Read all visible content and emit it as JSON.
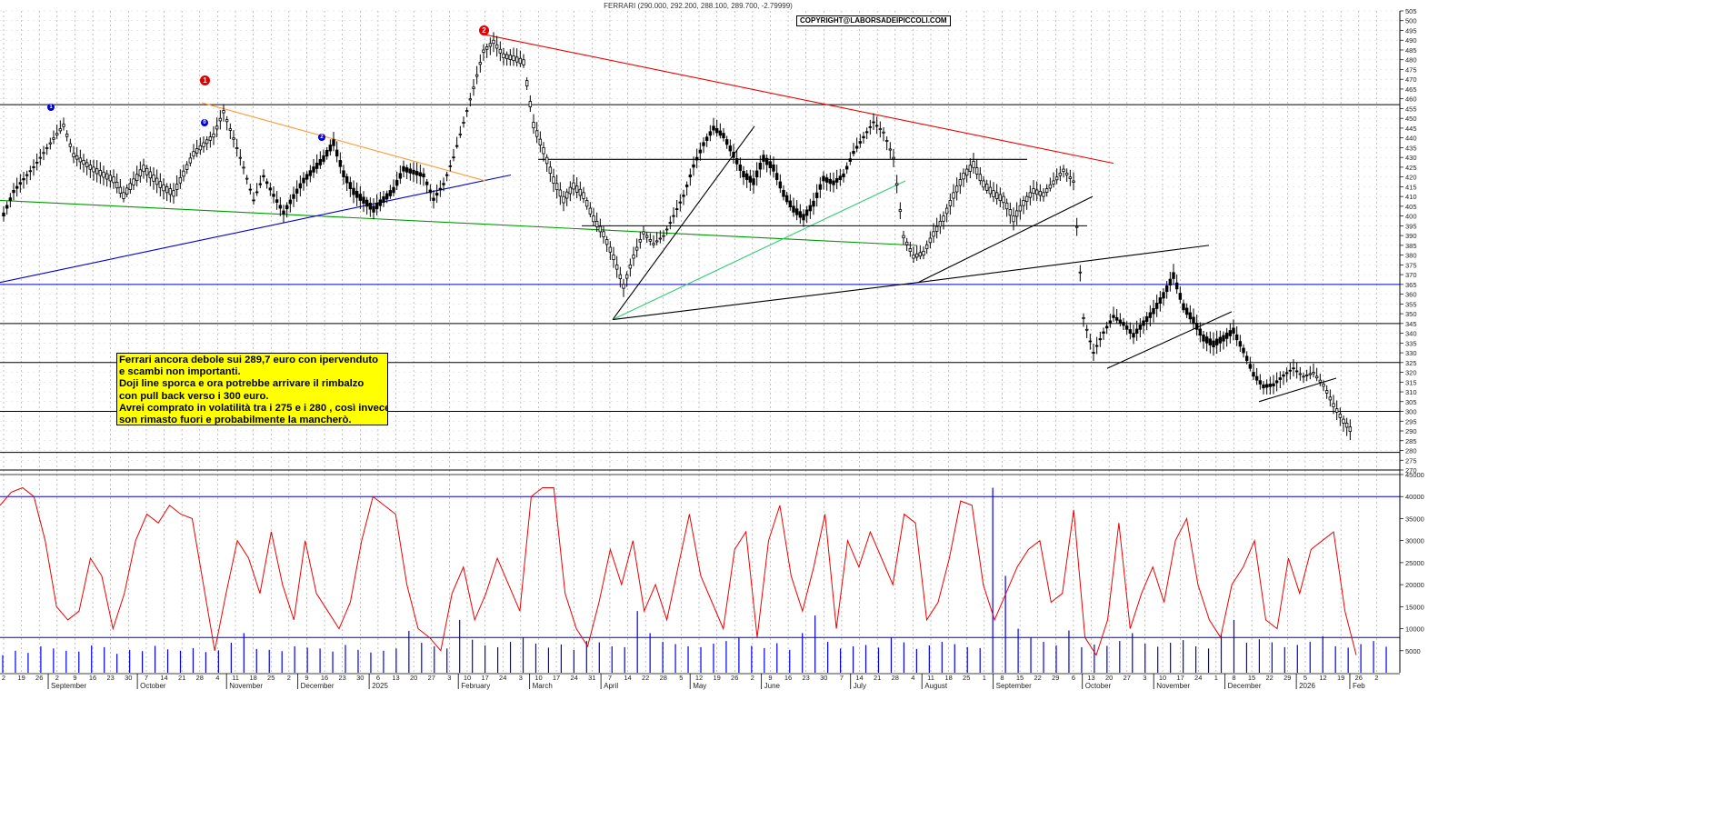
{
  "header": {
    "title": "FERRARI (290.000, 292.200, 288.100, 289.700, -2.79999)",
    "copyright": "COPYRIGHT@LABORSADEIPICCOLI.COM"
  },
  "annotation": {
    "lines": [
      "Ferrari ancora debole sui 289,7 euro con ipervenduto",
      "e scambi non importanti.",
      "Doji line sporca e ora potrebbe arrivare il rimbalzo",
      "con pull back verso i 300 euro.",
      "Avrei comprato in volatilità tra i 275 e i 280 , così invece",
      "son rimasto fuori e probabilmente la mancherò."
    ]
  },
  "wave_labels": {
    "red": [
      "1",
      "2"
    ],
    "blue": [
      "1",
      "0",
      "2"
    ]
  },
  "colors": {
    "candle": "#000000",
    "grid": "#9a9a9a",
    "horizontal": "#000000",
    "support_blue": "#0000cc",
    "resistance_red": "#ee0000",
    "orange": "#ff9933",
    "green": "#009900",
    "light_green": "#33cc77",
    "volume": "#0000ee",
    "oscillator": "#ee0000"
  },
  "chart_data": [
    {
      "type": "candlestick",
      "title": "FERRARI (290.000, 292.200, 288.100, 289.700, -2.79999)",
      "last": {
        "open": 290.0,
        "high": 292.2,
        "low": 288.1,
        "close": 289.7,
        "change": -2.79999
      },
      "ylim": [
        270,
        505
      ],
      "y_ticks": [
        505,
        500,
        495,
        490,
        485,
        480,
        475,
        470,
        465,
        460,
        455,
        450,
        445,
        440,
        435,
        430,
        425,
        420,
        415,
        410,
        405,
        400,
        395,
        390,
        385,
        380,
        375,
        370,
        365,
        360,
        355,
        350,
        345,
        340,
        335,
        330,
        325,
        320,
        315,
        310,
        305,
        300,
        295,
        290,
        285,
        280,
        275,
        270
      ],
      "x_day_labels": [
        "2",
        "19",
        "26",
        "2",
        "9",
        "16",
        "23",
        "30",
        "7",
        "14",
        "21",
        "28",
        "4",
        "11",
        "18",
        "25",
        "2",
        "9",
        "16",
        "23",
        "30",
        "6",
        "13",
        "20",
        "27",
        "3",
        "10",
        "17",
        "24",
        "3",
        "10",
        "17",
        "24",
        "31",
        "7",
        "14",
        "22",
        "28",
        "5",
        "12",
        "19",
        "26",
        "2",
        "9",
        "16",
        "23",
        "30",
        "7",
        "14",
        "21",
        "28",
        "4",
        "11",
        "18",
        "25",
        "1",
        "8",
        "15",
        "22",
        "29",
        "6",
        "13",
        "20",
        "27",
        "3",
        "10",
        "17",
        "24",
        "1",
        "8",
        "15",
        "22",
        "29",
        "5",
        "12",
        "19",
        "26",
        "2"
      ],
      "x_month_labels": [
        "September",
        "October",
        "November",
        "December",
        "2025",
        "February",
        "March",
        "April",
        "May",
        "June",
        "July",
        "August",
        "September",
        "October",
        "November",
        "December",
        "2026",
        "Feb"
      ],
      "horizontal_levels": [
        457,
        365,
        345,
        325,
        300,
        279,
        270
      ],
      "price_path": [
        [
          0,
          400
        ],
        [
          1,
          412
        ],
        [
          3,
          425
        ],
        [
          5,
          440
        ],
        [
          6,
          447
        ],
        [
          7,
          432
        ],
        [
          9,
          425
        ],
        [
          11,
          420
        ],
        [
          12,
          412
        ],
        [
          14,
          426
        ],
        [
          16,
          416
        ],
        [
          17,
          413
        ],
        [
          19,
          433
        ],
        [
          21,
          442
        ],
        [
          22,
          454
        ],
        [
          23,
          440
        ],
        [
          24,
          425
        ],
        [
          25,
          408
        ],
        [
          26,
          420
        ],
        [
          27,
          410
        ],
        [
          28,
          401
        ],
        [
          30,
          417
        ],
        [
          32,
          428
        ],
        [
          33,
          436
        ],
        [
          34,
          420
        ],
        [
          35,
          411
        ],
        [
          37,
          402
        ],
        [
          39,
          412
        ],
        [
          40,
          423
        ],
        [
          42,
          420
        ],
        [
          43,
          408
        ],
        [
          44,
          416
        ],
        [
          45,
          430
        ],
        [
          46,
          448
        ],
        [
          47,
          466
        ],
        [
          48,
          485
        ],
        [
          49,
          490
        ],
        [
          50,
          483
        ],
        [
          51,
          482
        ],
        [
          52,
          480
        ],
        [
          53,
          448
        ],
        [
          54,
          435
        ],
        [
          55,
          420
        ],
        [
          56,
          410
        ],
        [
          57,
          417
        ],
        [
          58,
          412
        ],
        [
          59,
          400
        ],
        [
          60,
          392
        ],
        [
          61,
          380
        ],
        [
          62,
          365
        ],
        [
          63,
          380
        ],
        [
          64,
          392
        ],
        [
          65,
          386
        ],
        [
          66,
          390
        ],
        [
          67,
          400
        ],
        [
          68,
          410
        ],
        [
          69,
          425
        ],
        [
          70,
          436
        ],
        [
          71,
          444
        ],
        [
          72,
          440
        ],
        [
          73,
          430
        ],
        [
          74,
          420
        ],
        [
          75,
          416
        ],
        [
          76,
          428
        ],
        [
          77,
          423
        ],
        [
          78,
          410
        ],
        [
          79,
          402
        ],
        [
          80,
          398
        ],
        [
          81,
          405
        ],
        [
          82,
          418
        ],
        [
          83,
          416
        ],
        [
          84,
          420
        ],
        [
          85,
          432
        ],
        [
          86,
          440
        ],
        [
          87,
          448
        ],
        [
          88,
          443
        ],
        [
          89,
          430
        ],
        [
          90,
          390
        ],
        [
          91,
          380
        ],
        [
          92,
          382
        ],
        [
          93,
          392
        ],
        [
          94,
          400
        ],
        [
          95,
          412
        ],
        [
          96,
          422
        ],
        [
          97,
          428
        ],
        [
          98,
          418
        ],
        [
          99,
          413
        ],
        [
          100,
          410
        ],
        [
          101,
          400
        ],
        [
          102,
          408
        ],
        [
          103,
          414
        ],
        [
          104,
          412
        ],
        [
          105,
          418
        ],
        [
          106,
          424
        ],
        [
          107,
          418
        ],
        [
          108,
          348
        ],
        [
          109,
          330
        ],
        [
          110,
          340
        ],
        [
          111,
          348
        ],
        [
          112,
          344
        ],
        [
          113,
          338
        ],
        [
          114,
          344
        ],
        [
          115,
          350
        ],
        [
          116,
          358
        ],
        [
          117,
          368
        ],
        [
          118,
          352
        ],
        [
          119,
          345
        ],
        [
          120,
          336
        ],
        [
          121,
          333
        ],
        [
          122,
          336
        ],
        [
          123,
          340
        ],
        [
          124,
          330
        ],
        [
          125,
          318
        ],
        [
          126,
          312
        ],
        [
          127,
          313
        ],
        [
          128,
          318
        ],
        [
          129,
          322
        ],
        [
          130,
          318
        ],
        [
          131,
          320
        ],
        [
          132,
          314
        ],
        [
          133,
          304
        ],
        [
          134,
          296
        ],
        [
          135,
          290
        ]
      ]
    },
    {
      "type": "bar+line",
      "title": "",
      "ylim": [
        0,
        45000
      ],
      "y_ticks": [
        45000,
        40000,
        35000,
        30000,
        25000,
        20000,
        15000,
        10000,
        5000
      ],
      "reference_levels": [
        40000,
        8000
      ],
      "series": [
        {
          "type": "line",
          "values": [
            38000,
            41000,
            42000,
            40000,
            30000,
            15000,
            12000,
            14000,
            26000,
            22000,
            10000,
            18000,
            30000,
            36000,
            34000,
            38000,
            36000,
            35000,
            20000,
            5000,
            18000,
            30000,
            26000,
            18000,
            32000,
            20000,
            12000,
            30000,
            18000,
            14000,
            10000,
            16000,
            30000,
            40000,
            38000,
            36000,
            20000,
            10000,
            8000,
            5000,
            18000,
            24000,
            12000,
            18000,
            26000,
            20000,
            14000,
            40000,
            42000,
            42000,
            18000,
            10000,
            6000,
            16000,
            28000,
            20000,
            30000,
            14000,
            20000,
            12000,
            24000,
            36000,
            22000,
            16000,
            10000,
            28000,
            32000,
            8000,
            30000,
            38000,
            22000,
            14000,
            24000,
            36000,
            10000,
            30000,
            24000,
            32000,
            26000,
            20000,
            36000,
            34000,
            12000,
            16000,
            26000,
            39000,
            38000,
            20000,
            12000,
            18000,
            24000,
            28000,
            30000,
            16000,
            18000,
            37000,
            8000,
            4000,
            12000,
            34000,
            10000,
            18000,
            24000,
            16000,
            30000,
            35000,
            20000,
            12000,
            8000,
            20000,
            24000,
            30000,
            12000,
            10000,
            26000,
            18000,
            28000,
            30000,
            32000,
            14000,
            4000
          ]
        },
        {
          "type": "bar",
          "values": [
            4000,
            5000,
            4500,
            6000,
            5500,
            5000,
            4800,
            6200,
            5800,
            4300,
            5200,
            4900,
            6100,
            5300,
            5000,
            5600,
            4700,
            5100,
            6800,
            9000,
            5400,
            5200,
            4900,
            6000,
            5700,
            5500,
            4800,
            6300,
            5200,
            4600,
            5000,
            5500,
            9500,
            6800,
            6000,
            5500,
            12000,
            7500,
            6200,
            5800,
            7000,
            8000,
            6600,
            5700,
            6400,
            5200,
            7200,
            6900,
            6000,
            5800,
            14000,
            9000,
            7000,
            6500,
            6000,
            5800,
            6600,
            7200,
            8000,
            6100,
            5600,
            6700,
            5200,
            9000,
            13000,
            7000,
            5500,
            6000,
            6300,
            5700,
            8000,
            6900,
            5400,
            6200,
            7000,
            6500,
            5800,
            5600,
            42000,
            22000,
            10000,
            8000,
            7000,
            6200,
            9600,
            5800,
            6400,
            6100,
            7200,
            9000,
            6600,
            5900,
            6800,
            7400,
            6000,
            5500,
            8800,
            12000,
            6800,
            7600,
            6900,
            5800,
            6300,
            7000,
            8300,
            6000,
            5700,
            6500,
            7200,
            5900
          ]
        }
      ]
    }
  ]
}
